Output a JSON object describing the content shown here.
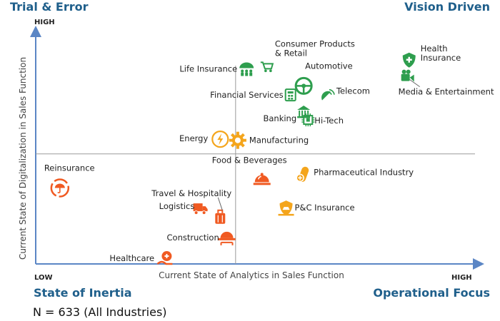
{
  "colors": {
    "green": "#2e9e4e",
    "orange": "#f05a22",
    "yellow": "#f4a51c",
    "axis": "#5b86c5",
    "divider": "#9a9a9a",
    "corner_text": "#1f5f8b"
  },
  "corners": {
    "top_left": "Trial & Error",
    "top_right": "Vision Driven",
    "bottom_left": "State of Inertia",
    "bottom_right": "Operational Focus"
  },
  "note": "N = 633 (All Industries)",
  "chart_data": {
    "type": "scatter",
    "title": "",
    "xlabel": "Current State of Analytics in Sales Function",
    "ylabel": "Current State of  Digitalization in Sales  Function",
    "x_tick_low": "LOW",
    "x_tick_high": "HIGH",
    "y_tick_high": "HIGH",
    "xlim": [
      0,
      100
    ],
    "ylim": [
      0,
      100
    ],
    "x_divider": 45.5,
    "y_divider": 48.5,
    "grid": false,
    "points": [
      {
        "label": "Consumer Products\n& Retail",
        "x": 52.5,
        "y": 87.0,
        "color": "green",
        "icon": "shopping-cart-icon"
      },
      {
        "label": "Life Insurance",
        "x": 48.0,
        "y": 86.0,
        "color": "green",
        "icon": "umbrella-family-icon"
      },
      {
        "label": "Automotive",
        "x": 61.0,
        "y": 78.5,
        "color": "green",
        "icon": "steering-wheel-icon"
      },
      {
        "label": "Telecom",
        "x": 66.5,
        "y": 74.0,
        "color": "green",
        "icon": "satellite-dish-icon"
      },
      {
        "label": "Financial Services",
        "x": 58.0,
        "y": 74.5,
        "color": "green",
        "icon": "calculator-icon"
      },
      {
        "label": "Banking",
        "x": 61.0,
        "y": 67.0,
        "color": "green",
        "icon": "bank-icon"
      },
      {
        "label": "Hi-Tech",
        "x": 62.0,
        "y": 63.5,
        "color": "green",
        "icon": "microchip-icon"
      },
      {
        "label": "Health\nInsurance",
        "x": 85.0,
        "y": 90.0,
        "color": "green",
        "icon": "shield-cross-icon"
      },
      {
        "label": "Media & Entertainment",
        "x": 84.5,
        "y": 82.5,
        "color": "green",
        "icon": "video-camera-icon"
      },
      {
        "label": "Energy",
        "x": 42.0,
        "y": 55.0,
        "color": "yellow",
        "icon": "lightning-icon"
      },
      {
        "label": "Manufacturing",
        "x": 46.0,
        "y": 54.5,
        "color": "yellow",
        "icon": "gear-icon"
      },
      {
        "label": "Reinsurance",
        "x": 5.5,
        "y": 33.5,
        "color": "orange",
        "icon": "umbrella-cycle-icon"
      },
      {
        "label": "Food & Beverages",
        "x": 51.5,
        "y": 37.0,
        "color": "orange",
        "icon": "food-cloche-icon"
      },
      {
        "label": "Pharmaceutical Industry",
        "x": 61.0,
        "y": 39.5,
        "color": "yellow",
        "icon": "pill-icon"
      },
      {
        "label": "Travel & Hospitality",
        "x": 42.0,
        "y": 20.5,
        "color": "orange",
        "icon": "luggage-icon"
      },
      {
        "label": "Logistics",
        "x": 37.5,
        "y": 24.5,
        "color": "orange",
        "icon": "truck-icon"
      },
      {
        "label": "P&C Insurance",
        "x": 57.0,
        "y": 24.5,
        "color": "yellow",
        "icon": "car-shield-icon"
      },
      {
        "label": "Construction",
        "x": 43.5,
        "y": 12.0,
        "color": "orange",
        "icon": "hard-hat-icon"
      },
      {
        "label": "Healthcare",
        "x": 29.5,
        "y": 2.5,
        "color": "orange",
        "icon": "hand-cross-icon"
      }
    ]
  }
}
